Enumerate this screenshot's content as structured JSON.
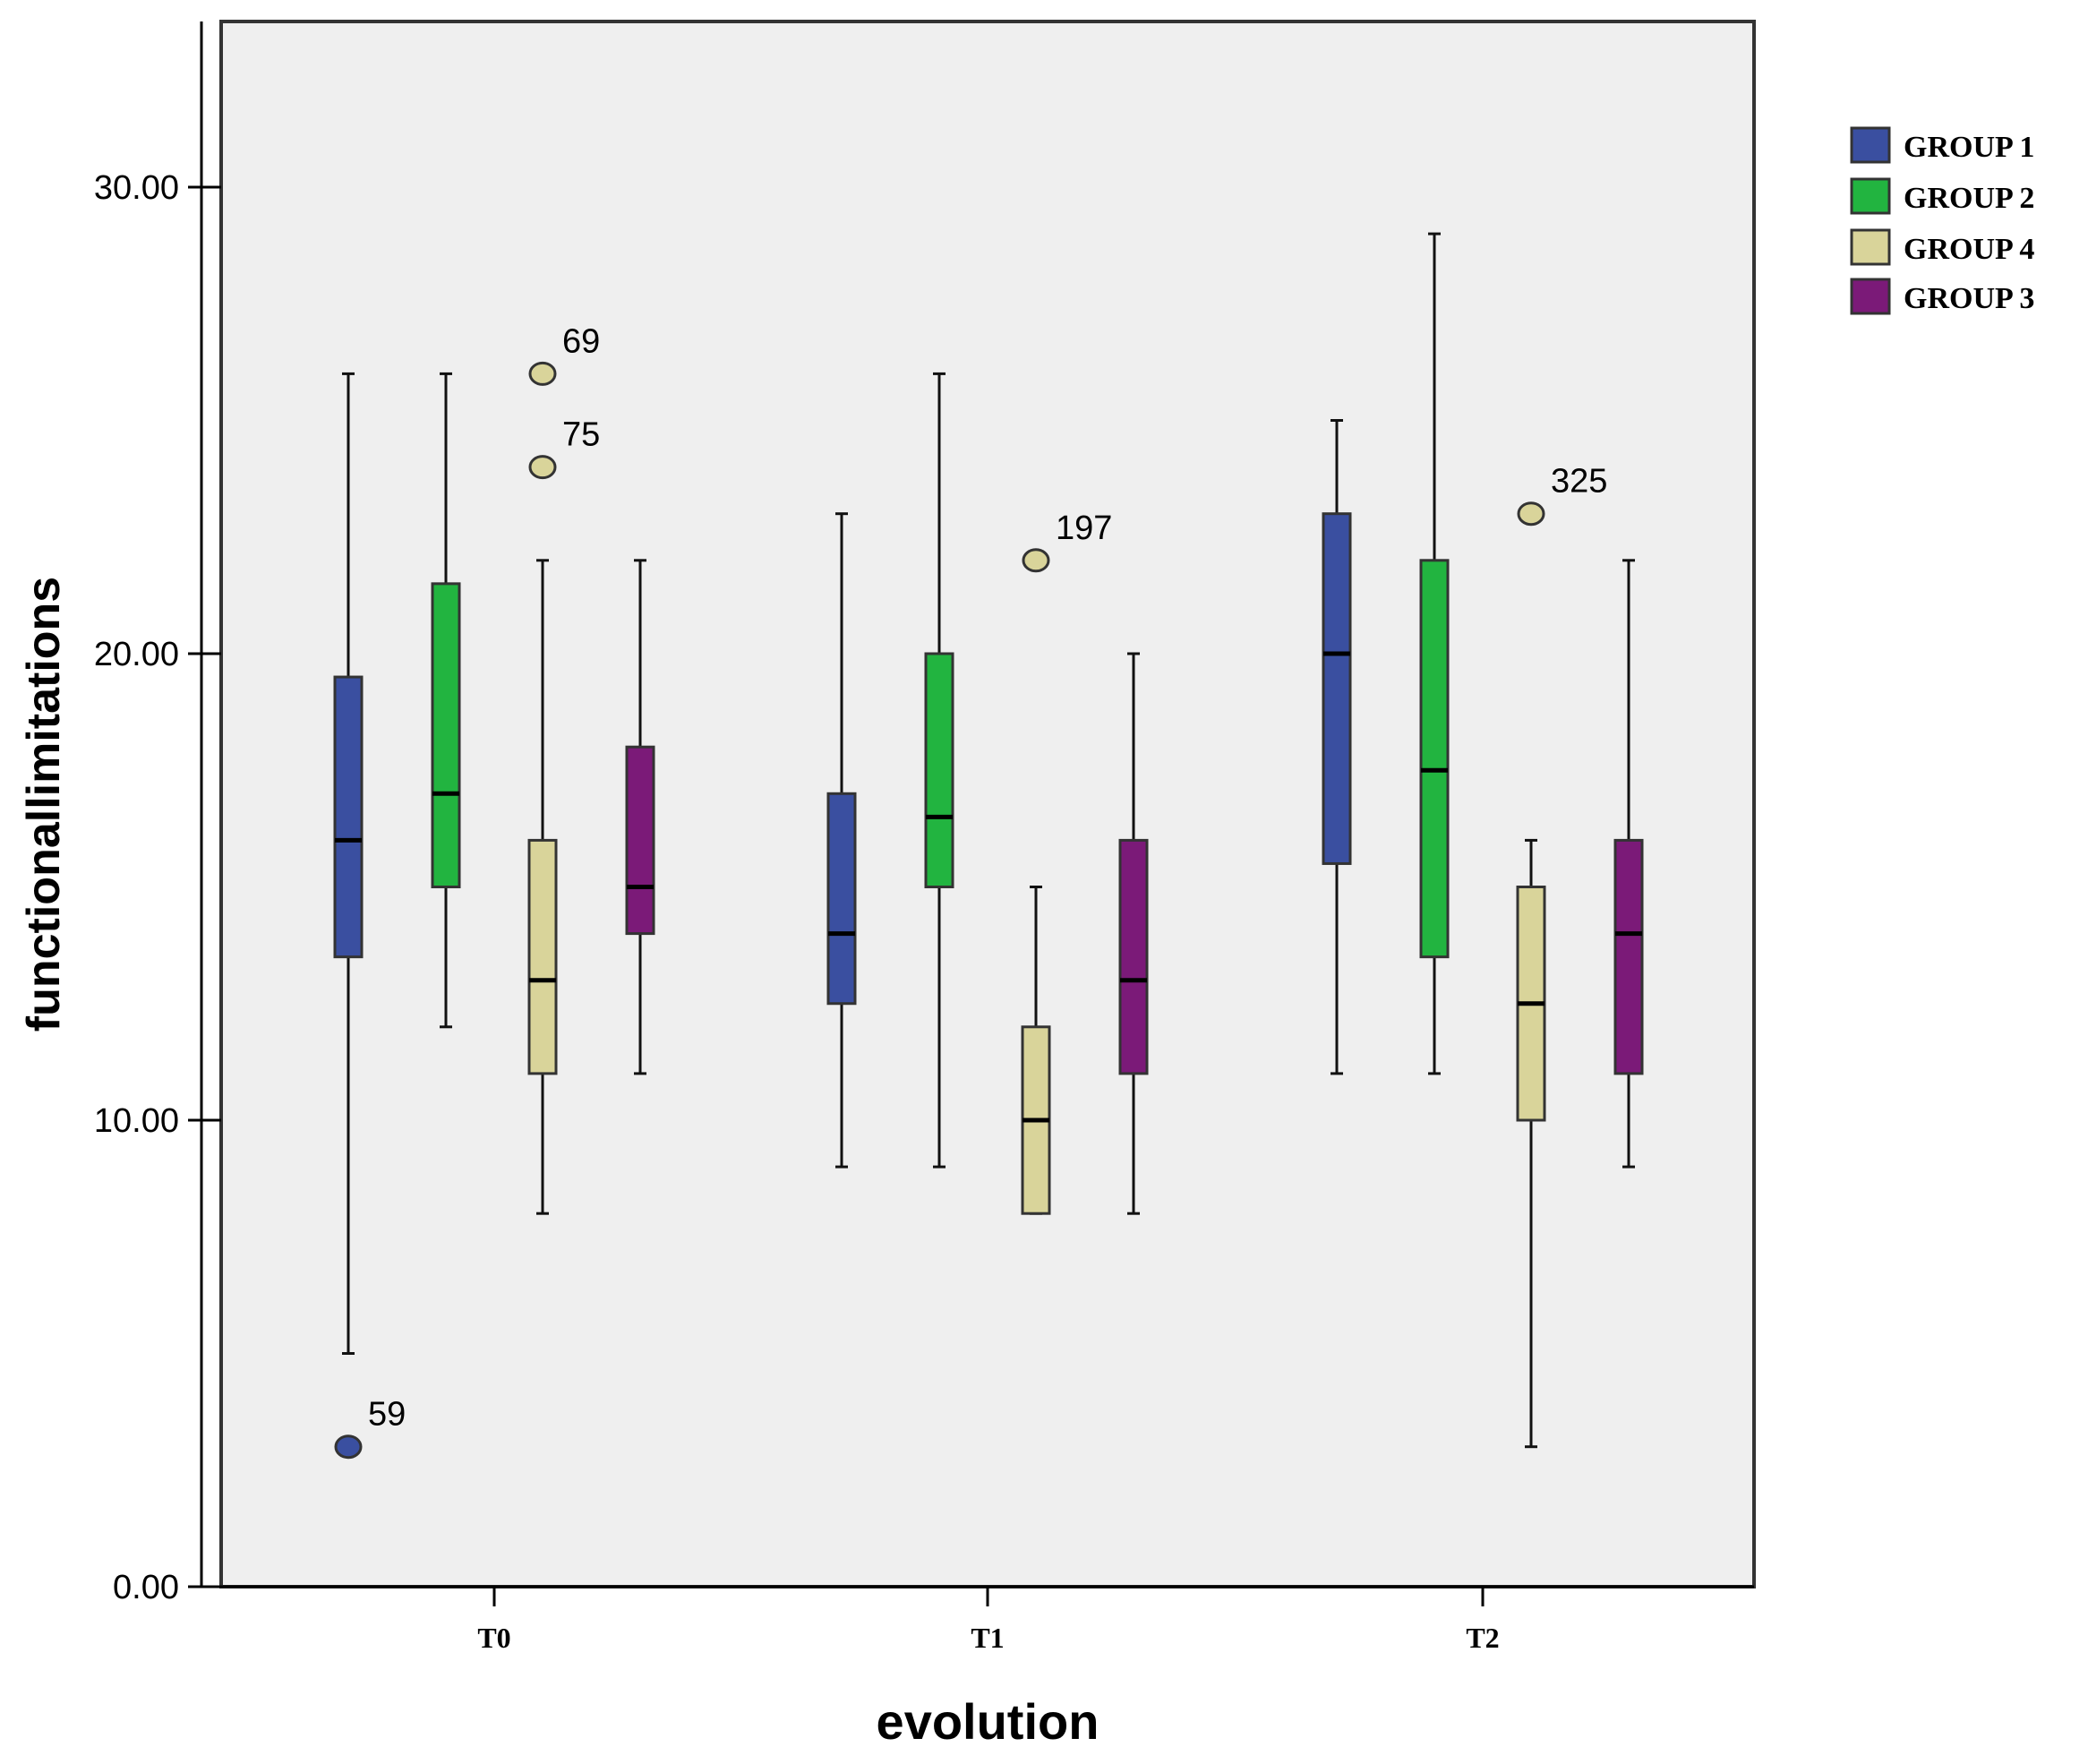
{
  "chart_data": {
    "type": "boxplot",
    "title": "",
    "xlabel": "evolution",
    "ylabel": "functionallimitations",
    "ylim": [
      0,
      33.5
    ],
    "yticks": [
      0,
      10,
      20,
      30
    ],
    "ytick_labels": [
      "0.00",
      "10.00",
      "20.00",
      "30.00"
    ],
    "categories": [
      "T0",
      "T1",
      "T2"
    ],
    "legend": {
      "placement": "top-right-outside"
    },
    "series": [
      {
        "name": "GROUP 1",
        "color": "#3a4fa0",
        "boxes": [
          {
            "category": "T0",
            "whisker_low": 5,
            "q1": 13.5,
            "median": 16,
            "q3": 19.5,
            "whisker_high": 26,
            "outliers": [
              {
                "value": 3,
                "label": "59"
              }
            ]
          },
          {
            "category": "T1",
            "whisker_low": 9,
            "q1": 12.5,
            "median": 14,
            "q3": 17,
            "whisker_high": 23,
            "outliers": []
          },
          {
            "category": "T2",
            "whisker_low": 11,
            "q1": 15.5,
            "median": 20,
            "q3": 23,
            "whisker_high": 25,
            "outliers": []
          }
        ]
      },
      {
        "name": "GROUP 2",
        "color": "#22b440",
        "boxes": [
          {
            "category": "T0",
            "whisker_low": 12,
            "q1": 15,
            "median": 17,
            "q3": 21.5,
            "whisker_high": 26,
            "outliers": []
          },
          {
            "category": "T1",
            "whisker_low": 9,
            "q1": 15,
            "median": 16.5,
            "q3": 20,
            "whisker_high": 26,
            "outliers": []
          },
          {
            "category": "T2",
            "whisker_low": 11,
            "q1": 13.5,
            "median": 17.5,
            "q3": 22,
            "whisker_high": 29,
            "outliers": []
          }
        ]
      },
      {
        "name": "GROUP 4",
        "color": "#d9d49a",
        "boxes": [
          {
            "category": "T0",
            "whisker_low": 8,
            "q1": 11,
            "median": 13,
            "q3": 16,
            "whisker_high": 22,
            "outliers": [
              {
                "value": 26,
                "label": "69"
              },
              {
                "value": 24,
                "label": "75"
              }
            ]
          },
          {
            "category": "T1",
            "whisker_low": 8,
            "q1": 8,
            "median": 10,
            "q3": 12,
            "whisker_high": 15,
            "outliers": [
              {
                "value": 22,
                "label": "197"
              }
            ]
          },
          {
            "category": "T2",
            "whisker_low": 3,
            "q1": 10,
            "median": 12.5,
            "q3": 15,
            "whisker_high": 16,
            "outliers": [
              {
                "value": 23,
                "label": "325"
              }
            ]
          }
        ]
      },
      {
        "name": "GROUP 3",
        "color": "#7b1a78",
        "boxes": [
          {
            "category": "T0",
            "whisker_low": 11,
            "q1": 14,
            "median": 15,
            "q3": 18,
            "whisker_high": 22,
            "outliers": []
          },
          {
            "category": "T1",
            "whisker_low": 8,
            "q1": 11,
            "median": 13,
            "q3": 16,
            "whisker_high": 20,
            "outliers": []
          },
          {
            "category": "T2",
            "whisker_low": 9,
            "q1": 11,
            "median": 14,
            "q3": 16,
            "whisker_high": 22,
            "outliers": []
          }
        ]
      }
    ]
  }
}
